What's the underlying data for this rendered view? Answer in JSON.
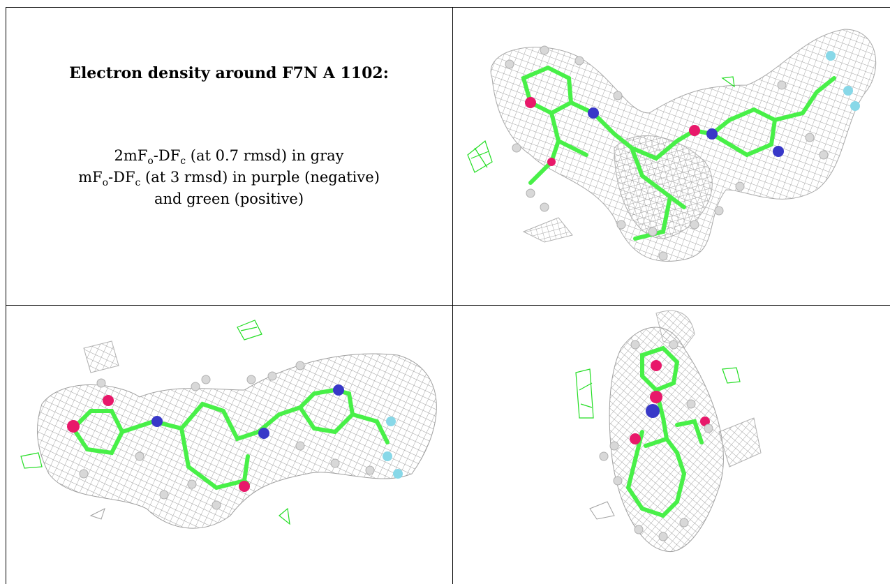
{
  "caption": {
    "title": "Electron density around F7N A 1102:",
    "line1": {
      "pre": "2mF",
      "sub1": "o",
      "mid": "-DF",
      "sub2": "c",
      "post": " (at 0.7 rmsd) in gray"
    },
    "line2": {
      "pre": "mF",
      "sub1": "o",
      "mid": "-DF",
      "sub2": "c",
      "post": " (at 3 rmsd) in purple (negative)"
    },
    "line3": "and green (positive)"
  },
  "colors": {
    "mesh": "#9a9a9a",
    "carbon": "#48f048",
    "oxygen": "#e8186a",
    "nitrogen": "#3838c8",
    "fluorine": "#88d8e8",
    "hydrogen": "#d8d8d8",
    "positive_density": "#22dd22"
  },
  "panels": [
    "view-top-right",
    "view-bottom-left",
    "view-bottom-right"
  ]
}
